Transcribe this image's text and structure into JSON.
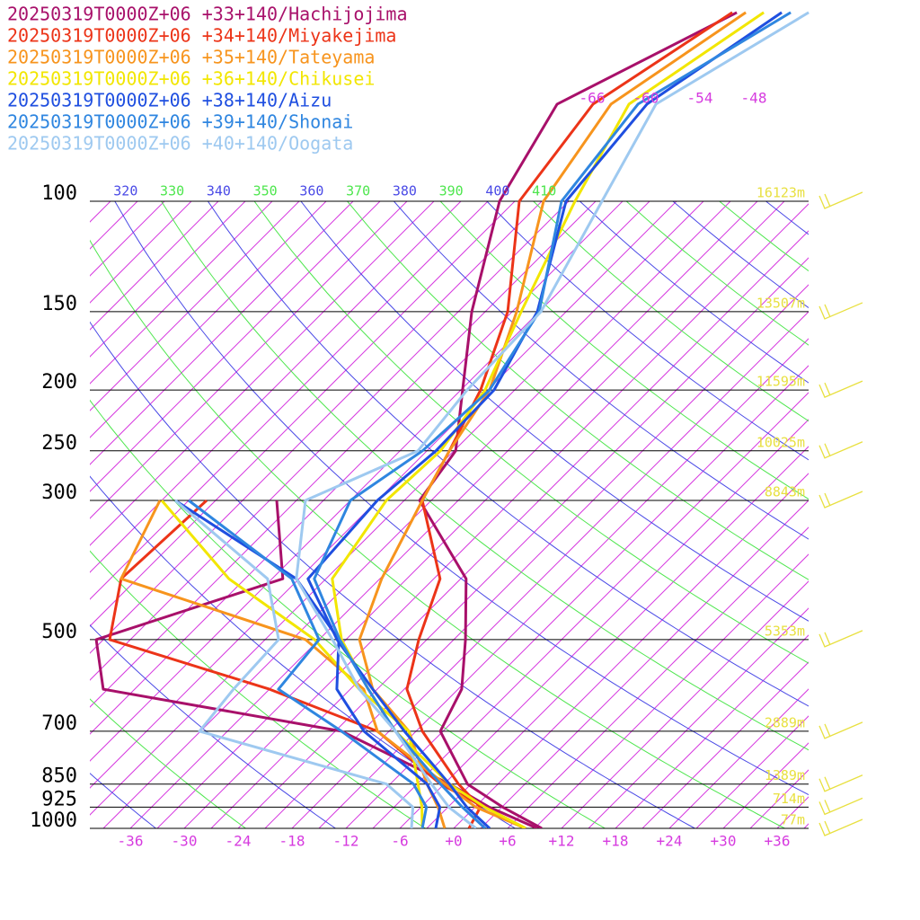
{
  "chart_data": {
    "type": "skewt",
    "ylog": true,
    "ylim": [
      1000,
      100
    ],
    "yticks": [
      100,
      150,
      200,
      250,
      300,
      500,
      700,
      850,
      925,
      1000
    ],
    "xlim": [
      -40,
      40
    ],
    "xticks": [
      {
        "value": -36,
        "label": "-36"
      },
      {
        "value": -30,
        "label": "-30"
      },
      {
        "value": -24,
        "label": "-24"
      },
      {
        "value": -18,
        "label": "-18"
      },
      {
        "value": -12,
        "label": "-12"
      },
      {
        "value": -6,
        "label": "-6"
      },
      {
        "value": 0,
        "label": "+0"
      },
      {
        "value": 6,
        "label": "+6"
      },
      {
        "value": 12,
        "label": "+12"
      },
      {
        "value": 18,
        "label": "+18"
      },
      {
        "value": 24,
        "label": "+24"
      },
      {
        "value": 30,
        "label": "+30"
      },
      {
        "value": 36,
        "label": "+36"
      }
    ],
    "top_ticks": [
      -66,
      -60,
      -54,
      -48
    ],
    "theta_labels": [
      320,
      330,
      340,
      350,
      360,
      370,
      380,
      390,
      400,
      410
    ],
    "height_labels": [
      {
        "pressure": 100,
        "label": "16123m"
      },
      {
        "pressure": 150,
        "label": "13507m"
      },
      {
        "pressure": 200,
        "label": "11595m"
      },
      {
        "pressure": 250,
        "label": "10025m"
      },
      {
        "pressure": 300,
        "label": "8843m"
      },
      {
        "pressure": 500,
        "label": "5353m"
      },
      {
        "pressure": 700,
        "label": "2889m"
      },
      {
        "pressure": 850,
        "label": "1389m"
      },
      {
        "pressure": 925,
        "label": "714m"
      },
      {
        "pressure": 1000,
        "label": "77m"
      }
    ],
    "pressure": [
      1000,
      925,
      850,
      700,
      600,
      500,
      400,
      300,
      250,
      200,
      150,
      100,
      70,
      50
    ],
    "series": [
      {
        "name": "20250319T0000Z+06 +33+140/Hachijojima",
        "color": "#a8106a",
        "temperature": [
          9.8,
          3.1,
          -3.4,
          -12.3,
          -14.6,
          -19.7,
          -26.4,
          -40.3,
          -41.8,
          -47.8,
          -55.5,
          -64.7,
          -69.1,
          -59.3
        ],
        "dewpoint": [
          9.3,
          1.6,
          -5.4,
          -23.3,
          -54.5,
          -60.8,
          -46.8,
          -56.2,
          null,
          null,
          null,
          null,
          null,
          null
        ]
      },
      {
        "name": "20250319T0000Z+06 +34+140/Miyakejima",
        "color": "#ec3418",
        "temperature": [
          1.7,
          0.6,
          -4.4,
          -14.3,
          -20.7,
          -24.9,
          -29.3,
          -40,
          -42.5,
          -45.8,
          -51.5,
          -62.5,
          -65.1,
          -59.8
        ],
        "dewpoint": [
          8,
          1.1,
          -6.4,
          -19.3,
          -36,
          -59.3,
          -64.8,
          -64,
          null,
          null,
          null,
          null,
          null,
          null
        ]
      },
      {
        "name": "20250319T0000Z+06 +35+140/Tateyama",
        "color": "#f7941d",
        "temperature": [
          -1,
          -4.1,
          -7.9,
          -15.8,
          -24.5,
          -31.5,
          -35.8,
          -40,
          -42.5,
          -44.8,
          -50.5,
          -59.8,
          -63.1,
          -58.3
        ],
        "dewpoint": [
          8,
          0.1,
          -5.9,
          -19.3,
          -25.5,
          -37.5,
          -64.8,
          -69.2,
          null,
          null,
          null,
          null,
          null,
          null
        ]
      },
      {
        "name": "20250319T0000Z+06 +36+140/Chikusei",
        "color": "#f2e600",
        "temperature": [
          8,
          1.1,
          -5.4,
          -17.3,
          -25,
          -33.5,
          -41.3,
          -44,
          -43.5,
          -45.3,
          -50,
          -56.3,
          -61.1,
          -56.3
        ],
        "dewpoint": [
          -3.5,
          -5.9,
          -8.9,
          -15.8,
          -26,
          -36.5,
          -52.8,
          -69,
          null,
          null,
          null,
          null,
          null,
          null
        ]
      },
      {
        "name": "20250319T0000Z+06 +38+140/Aizu",
        "color": "#1f4fe0",
        "temperature": [
          4,
          -0.9,
          -5.4,
          -16.3,
          -24.5,
          -34,
          -44,
          -45,
          -44,
          -44.3,
          -48.2,
          -57.3,
          -59.1,
          -54.3
        ],
        "dewpoint": [
          -2,
          -3.9,
          -7.9,
          -20.8,
          -28.5,
          -33.8,
          -45.3,
          -67.5,
          null,
          null,
          null,
          null,
          null,
          null
        ]
      },
      {
        "name": "20250319T0000Z+06 +39+140/Shonai",
        "color": "#2f86e0",
        "temperature": [
          3.5,
          -1.4,
          -6.4,
          -17.3,
          -25,
          -33.7,
          -43.3,
          -48,
          -45.5,
          -44.8,
          -48,
          -57.8,
          -60.1,
          -53.3
        ],
        "dewpoint": [
          -3.5,
          -5.4,
          -9.4,
          -23.3,
          -35,
          -36,
          -45.8,
          -66,
          null,
          null,
          null,
          null,
          null,
          null
        ]
      },
      {
        "name": "20250319T0000Z+06 +40+140/Oogata",
        "color": "#9ec9f0",
        "temperature": [
          2.5,
          -2.9,
          -7.4,
          -17.3,
          -26,
          -34.5,
          -45.3,
          -53,
          -46,
          -47.3,
          -47.8,
          -53.3,
          -58.1,
          -51.3
        ],
        "dewpoint": [
          -4.7,
          -6.9,
          -12.4,
          -39.1,
          -40,
          -40.5,
          -48.5,
          -67.5,
          null,
          null,
          null,
          null,
          null,
          null
        ]
      }
    ]
  }
}
